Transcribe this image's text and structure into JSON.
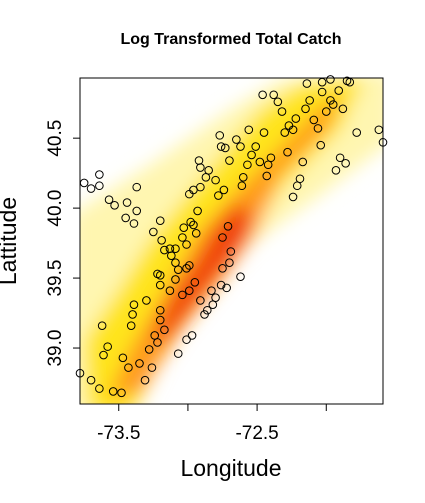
{
  "chart_data": {
    "type": "scatter",
    "title": "Log Transformed Total Catch",
    "x_label": "Longitude",
    "y_label": "Lattitude",
    "xlim": [
      -73.78,
      -71.59
    ],
    "ylim": [
      38.6,
      40.93
    ],
    "xticks": [
      -73.5,
      {
        "value": -73.0,
        "label": null
      },
      -72.5,
      {
        "value": -72.0,
        "label": null
      }
    ],
    "yticks": [
      39.0,
      39.5,
      40.0,
      40.5
    ],
    "point_color": "#000000",
    "x": [
      -73.75,
      -73.7,
      -73.64,
      -73.64,
      -73.57,
      -73.53,
      -73.44,
      -73.45,
      -73.37,
      -73.37,
      -73.39,
      -73.25,
      -73.2,
      -73.19,
      -73.17,
      -73.13,
      -73.12,
      -73.09,
      -73.09,
      -73.03,
      -73.04,
      -73.01,
      -72.98,
      -72.96,
      -72.94,
      -72.93,
      -72.99,
      -72.96,
      -72.91,
      -72.87,
      -72.91,
      -72.92,
      -72.85,
      -72.8,
      -72.78,
      -72.74,
      -72.76,
      -72.77,
      -72.73,
      -72.7,
      -72.65,
      -72.62,
      -72.6,
      -72.61,
      -72.57,
      -72.54,
      -72.56,
      -72.51,
      -72.48,
      -72.46,
      -72.45,
      -72.43,
      -72.42,
      -72.4,
      -72.38,
      -72.35,
      -72.32,
      -72.3,
      -72.28,
      -72.27,
      -72.24,
      -72.22,
      -72.24,
      -72.21,
      -72.19,
      -72.17,
      -72.15,
      -72.14,
      -72.12,
      -72.09,
      -72.06,
      -72.04,
      -72.03,
      -72.0,
      -71.97,
      -71.95,
      -71.91,
      -71.88,
      -71.85,
      -71.83,
      -71.78,
      -71.93,
      -71.9,
      -71.86,
      -71.62,
      -71.59,
      -72.03,
      -71.97,
      -73.78,
      -73.7,
      -73.64,
      -73.61,
      -73.58,
      -73.62,
      -73.47,
      -73.43,
      -73.48,
      -73.54,
      -73.35,
      -73.31,
      -73.26,
      -73.28,
      -73.24,
      -73.2,
      -73.22,
      -73.17,
      -73.22,
      -73.2,
      -73.3,
      -73.39,
      -73.4,
      -73.41,
      -73.2,
      -73.13,
      -73.09,
      -73.04,
      -72.99,
      -72.95,
      -73.07,
      -73.01,
      -72.99,
      -72.91,
      -72.86,
      -72.83,
      -72.88,
      -72.82,
      -72.8,
      -72.76,
      -72.75,
      -72.7,
      -72.72,
      -72.69,
      -72.62,
      -72.75,
      -72.71,
      -73.07,
      -73.2,
      -73.01,
      -72.97
    ],
    "y": [
      40.18,
      40.14,
      40.16,
      40.24,
      40.06,
      40.02,
      40.04,
      39.93,
      40.15,
      39.98,
      39.89,
      39.83,
      39.91,
      39.77,
      39.7,
      39.71,
      39.66,
      39.61,
      39.71,
      39.86,
      39.79,
      39.74,
      39.9,
      39.88,
      39.82,
      39.98,
      40.1,
      40.13,
      40.15,
      40.22,
      40.29,
      40.34,
      40.27,
      40.2,
      40.09,
      40.13,
      40.44,
      40.52,
      40.43,
      40.34,
      40.49,
      40.44,
      40.22,
      40.16,
      40.31,
      40.38,
      40.56,
      40.44,
      40.33,
      40.81,
      40.54,
      40.23,
      40.31,
      40.36,
      40.81,
      40.76,
      40.69,
      40.54,
      40.4,
      40.59,
      40.56,
      40.64,
      40.08,
      40.16,
      40.21,
      40.33,
      40.71,
      40.89,
      40.77,
      40.63,
      40.57,
      40.45,
      40.9,
      40.69,
      40.77,
      40.74,
      40.84,
      40.71,
      40.91,
      40.9,
      40.54,
      40.27,
      40.36,
      40.32,
      40.56,
      40.47,
      40.83,
      40.92,
      38.82,
      38.77,
      38.71,
      38.95,
      39.01,
      39.16,
      38.93,
      38.86,
      38.68,
      38.69,
      38.89,
      38.77,
      38.86,
      38.99,
      39.09,
      39.2,
      39.04,
      39.13,
      39.53,
      39.52,
      39.34,
      39.31,
      39.24,
      39.16,
      39.27,
      39.41,
      39.49,
      39.38,
      39.41,
      39.47,
      39.56,
      39.57,
      39.59,
      39.34,
      39.27,
      39.41,
      39.24,
      39.31,
      39.36,
      39.45,
      39.57,
      39.61,
      39.43,
      39.69,
      39.51,
      39.79,
      39.87,
      38.96,
      39.45,
      39.06,
      39.09
    ]
  }
}
